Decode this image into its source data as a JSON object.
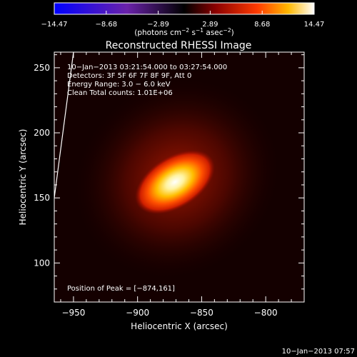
{
  "chart_data": {
    "type": "heatmap",
    "title": "Reconstructed RHESSI Image",
    "xlabel": "Heliocentric X (arcsec)",
    "ylabel": "Heliocentric Y (arcsec)",
    "xlim": [
      -965,
      -770
    ],
    "ylim": [
      70,
      262
    ],
    "xticks": [
      -950,
      -900,
      -850,
      -800
    ],
    "xtick_labels": [
      "−950",
      "−900",
      "−850",
      "−800"
    ],
    "yticks": [
      100,
      150,
      200,
      250
    ],
    "ytick_labels": [
      "100",
      "150",
      "200",
      "250"
    ],
    "colorbar": {
      "min": -14.47,
      "max": 14.47,
      "tick_labels": [
        "−14.47",
        "−8.68",
        "−2.89",
        "2.89",
        "8.68",
        "14.47"
      ],
      "unit_main": "(photons cm",
      "unit_exp1": "−2",
      "unit_mid": " s",
      "unit_exp2": "−1",
      "unit_end": " asec",
      "unit_exp3": "−2",
      "unit_close": ")",
      "colors": [
        "#0000ff",
        "#5a1a99",
        "#000000",
        "#7a0000",
        "#ff3300",
        "#ffcc00",
        "#ffffff"
      ]
    },
    "peak": {
      "x": -874,
      "y": 161
    },
    "limb_line": [
      [
        -965,
        150
      ],
      [
        -950,
        262
      ]
    ],
    "annotations": [
      "10−Jan−2013 03:21:54.000 to 03:27:54.000",
      "Detectors: 3F 5F 6F 7F 8F 9F, Att 0",
      "Energy Range: 3.0 − 6.0 keV",
      "Clean    Total counts: 1.01E+06"
    ],
    "peak_label": "Position of Peak = [−874,161]",
    "timestamp": "10−Jan−2013 07:57"
  }
}
